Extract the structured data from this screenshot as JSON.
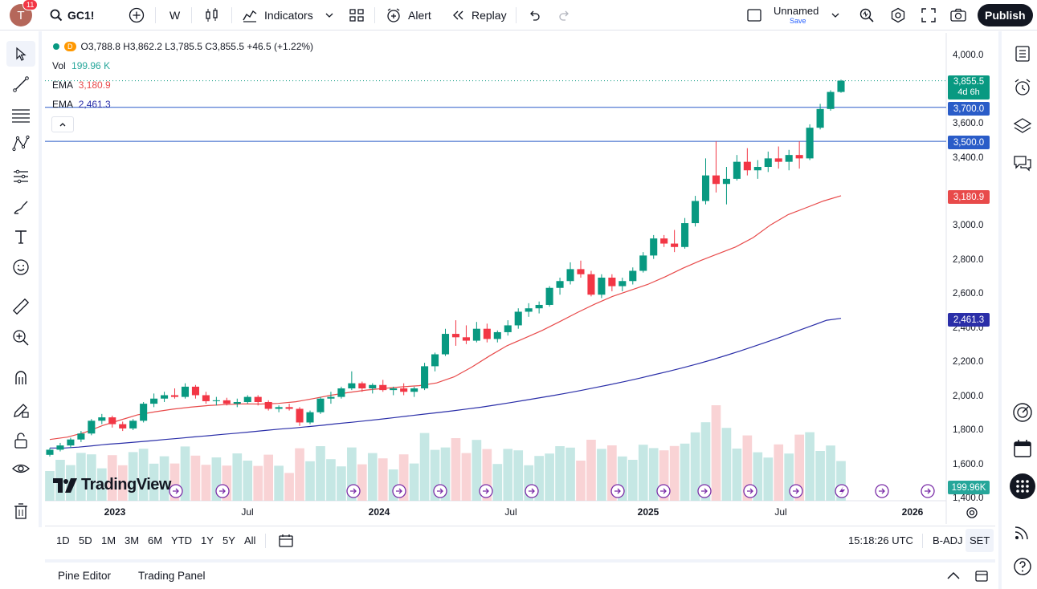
{
  "topbar": {
    "avatar_letter": "T",
    "notif_count": "11",
    "symbol": "GC1!",
    "interval": "W",
    "indicators_label": "Indicators",
    "alert_label": "Alert",
    "replay_label": "Replay",
    "layout_name": "Unnamed",
    "layout_save": "Save",
    "publish_label": "Publish"
  },
  "legend": {
    "dot_letter": "D",
    "ohlc": "O3,788.8 H3,862.2 L3,785.5 C3,855.5 +46.5 (+1.22%)",
    "vol_label": "Vol",
    "vol_value": "199.96 K",
    "ema1_label": "EMA",
    "ema1_value": "3,180.9",
    "ema2_label": "EMA",
    "ema2_value": "2,461.3"
  },
  "price_labels": {
    "last": "3,855.5",
    "countdown": "4d 6h",
    "line1": "3,700.0",
    "line2": "3,500.0",
    "ema1": "3,180.9",
    "ema2": "2,461.3",
    "vol": "199.96K"
  },
  "watermark": "TradingView",
  "bottom": {
    "ranges": [
      "1D",
      "5D",
      "1M",
      "3M",
      "6M",
      "YTD",
      "1Y",
      "5Y",
      "All"
    ],
    "clock": "15:18:26 UTC",
    "adj": "B-ADJ",
    "session": "SET"
  },
  "panel": {
    "pine_editor": "Pine Editor",
    "trading_panel": "Trading Panel"
  },
  "colors": {
    "up": "#089981",
    "down": "#f23645",
    "ema_fast": "#e84a4a",
    "ema_slow": "#2a2ea8",
    "accent": "#2962ff"
  },
  "chart_data": {
    "type": "candlestick",
    "symbol": "GC1!",
    "interval": "W",
    "y_ticks": [
      "4,000.0",
      "3,600.0",
      "3,400.0",
      "3,000.0",
      "2,800.0",
      "2,600.0",
      "2,400.0",
      "2,200.0",
      "2,000.0",
      "1,800.0",
      "1,600.0",
      "1,400.0"
    ],
    "x_ticks": [
      "2023",
      "Jul",
      "2024",
      "Jul",
      "2025",
      "Jul",
      "2026"
    ],
    "horizontal_lines": [
      3700,
      3500
    ],
    "series": [
      {
        "name": "EMA",
        "values": [
          1700,
          1700,
          1705,
          1713,
          1722,
          1728,
          1735,
          1742,
          1750,
          1757,
          1765,
          1772,
          1780,
          1787,
          1795,
          1803,
          1811,
          1818,
          1826,
          1834,
          1843,
          1851,
          1860,
          1869,
          1879,
          1889,
          1899,
          1908,
          1918,
          1929,
          1940,
          1953,
          1966,
          1980,
          1994,
          2008,
          2023,
          2039,
          2056,
          2073,
          2091,
          2110,
          2130,
          2150,
          2171,
          2193,
          2217,
          2243,
          2270,
          2298,
          2327,
          2357,
          2388,
          2419,
          2450,
          2461
        ]
      },
      {
        "name": "EMA",
        "values": [
          1750,
          1764,
          1792,
          1832,
          1864,
          1895,
          1913,
          1928,
          1940,
          1949,
          1955,
          1959,
          1958,
          1962,
          1972,
          1990,
          2010,
          2026,
          2040,
          2050,
          2059,
          2066,
          2082,
          2118,
          2175,
          2240,
          2300,
          2345,
          2390,
          2442,
          2495,
          2545,
          2590,
          2625,
          2660,
          2705,
          2755,
          2800,
          2840,
          2880,
          2935,
          3010,
          3070,
          3110,
          3150,
          3181
        ]
      }
    ],
    "candles": [
      [
        1660,
        1700,
        1650,
        1690
      ],
      [
        1690,
        1730,
        1680,
        1715
      ],
      [
        1715,
        1760,
        1700,
        1750
      ],
      [
        1750,
        1800,
        1735,
        1785
      ],
      [
        1785,
        1870,
        1775,
        1860
      ],
      [
        1860,
        1900,
        1840,
        1880
      ],
      [
        1880,
        1890,
        1820,
        1840
      ],
      [
        1840,
        1855,
        1800,
        1815
      ],
      [
        1815,
        1870,
        1805,
        1860
      ],
      [
        1860,
        1970,
        1850,
        1960
      ],
      [
        1960,
        2020,
        1940,
        1990
      ],
      [
        1990,
        2030,
        1970,
        2010
      ],
      [
        2010,
        2050,
        1990,
        2000
      ],
      [
        2000,
        2080,
        1990,
        2060
      ],
      [
        2060,
        2070,
        1990,
        2010
      ],
      [
        2010,
        2030,
        1960,
        1975
      ],
      [
        1975,
        2000,
        1950,
        1980
      ],
      [
        1980,
        1995,
        1950,
        1960
      ],
      [
        1960,
        1990,
        1940,
        1970
      ],
      [
        1970,
        2010,
        1960,
        2000
      ],
      [
        2000,
        2010,
        1950,
        1970
      ],
      [
        1970,
        1980,
        1920,
        1930
      ],
      [
        1930,
        1950,
        1910,
        1940
      ],
      [
        1940,
        1960,
        1920,
        1930
      ],
      [
        1930,
        1940,
        1830,
        1850
      ],
      [
        1850,
        1920,
        1840,
        1910
      ],
      [
        1910,
        2000,
        1900,
        1990
      ],
      [
        1990,
        2030,
        1960,
        2000
      ],
      [
        2000,
        2060,
        1990,
        2050
      ],
      [
        2050,
        2150,
        2040,
        2080
      ],
      [
        2080,
        2090,
        2030,
        2050
      ],
      [
        2050,
        2080,
        2020,
        2070
      ],
      [
        2070,
        2100,
        2030,
        2040
      ],
      [
        2040,
        2060,
        2010,
        2050
      ],
      [
        2050,
        2080,
        2010,
        2030
      ],
      [
        2030,
        2060,
        2000,
        2050
      ],
      [
        2050,
        2200,
        2040,
        2180
      ],
      [
        2180,
        2260,
        2150,
        2250
      ],
      [
        2250,
        2400,
        2240,
        2370
      ],
      [
        2370,
        2450,
        2300,
        2350
      ],
      [
        2350,
        2420,
        2310,
        2330
      ],
      [
        2330,
        2440,
        2320,
        2400
      ],
      [
        2400,
        2430,
        2320,
        2340
      ],
      [
        2340,
        2390,
        2320,
        2380
      ],
      [
        2380,
        2450,
        2360,
        2420
      ],
      [
        2420,
        2520,
        2400,
        2500
      ],
      [
        2500,
        2550,
        2470,
        2520
      ],
      [
        2520,
        2560,
        2490,
        2540
      ],
      [
        2540,
        2650,
        2530,
        2640
      ],
      [
        2640,
        2700,
        2600,
        2680
      ],
      [
        2680,
        2790,
        2660,
        2750
      ],
      [
        2750,
        2800,
        2700,
        2720
      ],
      [
        2720,
        2740,
        2590,
        2600
      ],
      [
        2600,
        2720,
        2580,
        2700
      ],
      [
        2700,
        2720,
        2620,
        2650
      ],
      [
        2650,
        2700,
        2620,
        2680
      ],
      [
        2680,
        2760,
        2660,
        2740
      ],
      [
        2740,
        2850,
        2730,
        2830
      ],
      [
        2830,
        2950,
        2810,
        2930
      ],
      [
        2930,
        2950,
        2880,
        2900
      ],
      [
        2900,
        2980,
        2850,
        2880
      ],
      [
        2880,
        3050,
        2870,
        3020
      ],
      [
        3020,
        3180,
        3000,
        3150
      ],
      [
        3150,
        3400,
        3130,
        3300
      ],
      [
        3300,
        3500,
        3200,
        3250
      ],
      [
        3250,
        3350,
        3130,
        3280
      ],
      [
        3280,
        3420,
        3270,
        3380
      ],
      [
        3380,
        3460,
        3300,
        3330
      ],
      [
        3330,
        3390,
        3280,
        3350
      ],
      [
        3350,
        3440,
        3320,
        3400
      ],
      [
        3400,
        3470,
        3340,
        3380
      ],
      [
        3380,
        3450,
        3330,
        3420
      ],
      [
        3420,
        3500,
        3340,
        3400
      ],
      [
        3400,
        3600,
        3390,
        3580
      ],
      [
        3580,
        3720,
        3570,
        3690
      ],
      [
        3690,
        3800,
        3680,
        3790
      ],
      [
        3790,
        3862,
        3785,
        3856
      ]
    ],
    "volume_note": "volume histogram bars colored by candle direction",
    "last_price": 3855.5,
    "ylim": [
      1400,
      4000
    ]
  }
}
